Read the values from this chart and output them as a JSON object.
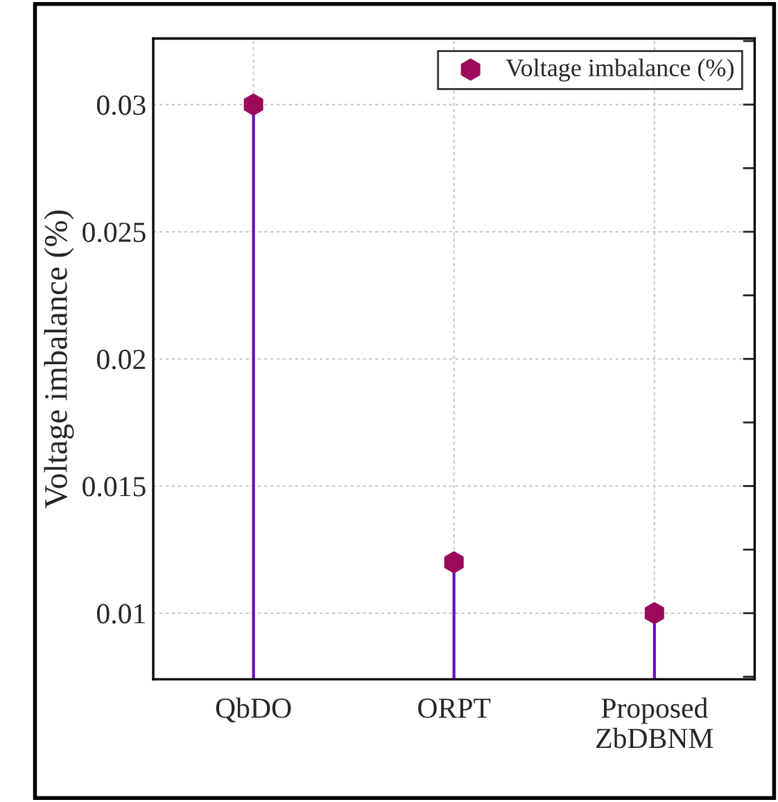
{
  "chart_data": {
    "type": "lollipop",
    "ylabel": "Voltage imbalance (%)",
    "categories": [
      "QbDO",
      "ORPT",
      "Proposed\nZbDBNM"
    ],
    "series": [
      {
        "name": "Voltage imbalance (%)",
        "color": "#9c0a5c",
        "values": [
          0.03,
          0.012,
          0.01
        ]
      }
    ],
    "ylim": [
      0.0074,
      0.0326
    ],
    "yticks": [
      0.01,
      0.015,
      0.02,
      0.025,
      0.03
    ],
    "grid": true,
    "legend": "top right"
  }
}
